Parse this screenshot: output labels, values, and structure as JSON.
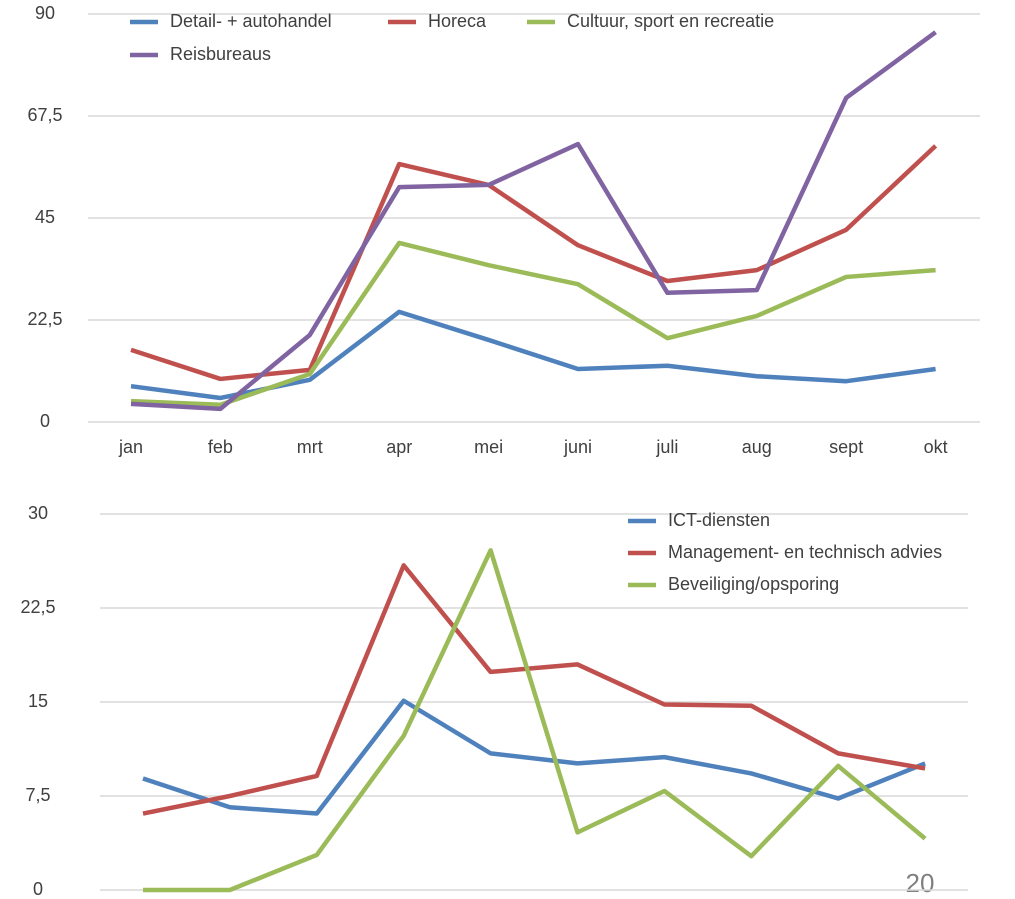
{
  "chart_data": [
    {
      "type": "line",
      "categories": [
        "jan",
        "feb",
        "mrt",
        "apr",
        "mei",
        "juni",
        "juli",
        "aug",
        "sept",
        "okt"
      ],
      "series": [
        {
          "name": "Detail- + autohandel",
          "color": "#4f81bd",
          "values": [
            7.9,
            5.3,
            9.3,
            24.3,
            18.1,
            11.7,
            12.4,
            10.1,
            9.0,
            11.7
          ]
        },
        {
          "name": "Horeca",
          "color": "#c0504d",
          "values": [
            15.9,
            9.5,
            11.5,
            56.9,
            52.3,
            39.0,
            31.1,
            33.5,
            42.4,
            60.9
          ]
        },
        {
          "name": "Cultuur, sport en recreatie",
          "color": "#9bbb59",
          "values": [
            4.6,
            3.8,
            10.6,
            39.5,
            34.6,
            30.4,
            18.5,
            23.4,
            32.0,
            33.5
          ]
        },
        {
          "name": "Reisbureaus",
          "color": "#8064a2",
          "values": [
            4.0,
            2.9,
            19.2,
            51.8,
            52.3,
            61.3,
            28.5,
            29.1,
            71.5,
            86.0
          ]
        }
      ],
      "ylim": [
        0,
        90
      ],
      "yticks": [
        0,
        {
          "value": 22.5,
          "label": "22,5"
        },
        45,
        {
          "value": 67.5,
          "label": "67,5"
        },
        90
      ],
      "grid": true
    },
    {
      "type": "line",
      "categories": [
        null,
        null,
        null,
        null,
        null,
        null,
        null,
        null,
        null,
        null
      ],
      "series": [
        {
          "name": "ICT-diensten",
          "color": "#4f81bd",
          "values": [
            8.9,
            6.6,
            6.1,
            15.1,
            10.9,
            10.1,
            10.6,
            9.3,
            7.3,
            10.1
          ]
        },
        {
          "name": "Management- en technisch advies",
          "color": "#c0504d",
          "values": [
            6.1,
            7.5,
            9.1,
            25.9,
            17.4,
            18.0,
            14.8,
            14.7,
            10.9,
            9.7
          ]
        },
        {
          "name": "Beveiliging/opsporing",
          "color": "#9bbb59",
          "values": [
            0,
            0,
            2.8,
            12.3,
            27.1,
            4.6,
            7.9,
            2.7,
            9.9,
            4.1
          ]
        }
      ],
      "ylim": [
        0,
        30
      ],
      "yticks": [
        0,
        {
          "value": 7.5,
          "label": "7,5"
        },
        15,
        {
          "value": 22.5,
          "label": "22,5"
        },
        30
      ],
      "grid": true
    }
  ],
  "page_number": "20"
}
